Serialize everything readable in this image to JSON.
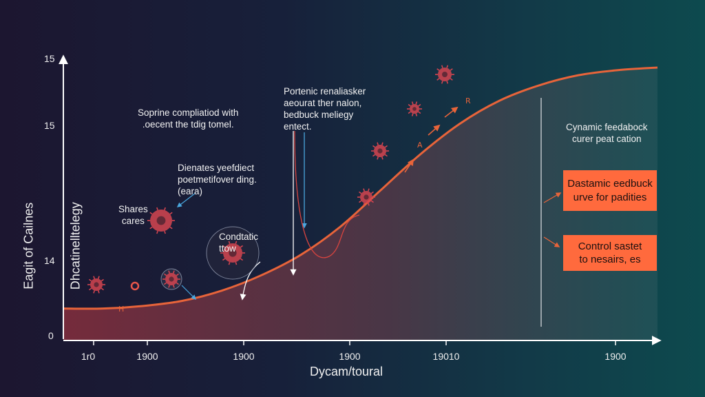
{
  "chart_data": {
    "type": "area",
    "xlabel": "Dycam/toural",
    "ylabel_lines": [
      "Eagit of Cailnes",
      "Dhcatinelltelegy"
    ],
    "x_tick_labels": [
      "1r0",
      "1900",
      "1900",
      "1900",
      "19010",
      "1900"
    ],
    "y_tick_labels": [
      "15",
      "15",
      "14",
      "0"
    ],
    "series": [
      {
        "values": [
          0.06,
          0.06,
          0.07,
          0.09,
          0.13,
          0.19,
          0.27,
          0.38,
          0.52,
          0.66,
          0.78,
          0.87,
          0.93,
          0.97,
          0.99,
          1.0
        ]
      }
    ],
    "annotations": {
      "a1": "Soprine compliatiod with\n.oecent the tdig tomel.",
      "a2": "Dienates yeefdiect\npoetmetifover ding.\n(eara)",
      "a3": "Shares\ncares",
      "a4": "Condtatic\nttow",
      "a5": "Portenic renaliasker\naeourat ther nalon,\nbedbuck meliegy\nentect.",
      "a6": "Cynamic feedabock\ncurer peat cation"
    },
    "callouts": {
      "box1": "Dastamic eedbuck\nurve for padities",
      "box2": "Control sastet\nto nesairs, es"
    },
    "colors": {
      "curve": "#e8643a",
      "fill_top": "#7a2c3c",
      "box": "#ff6a3d",
      "axis": "#ffffff",
      "virus": "#d64550"
    },
    "icons": [
      "virus-icon",
      "arrow-icon"
    ]
  }
}
